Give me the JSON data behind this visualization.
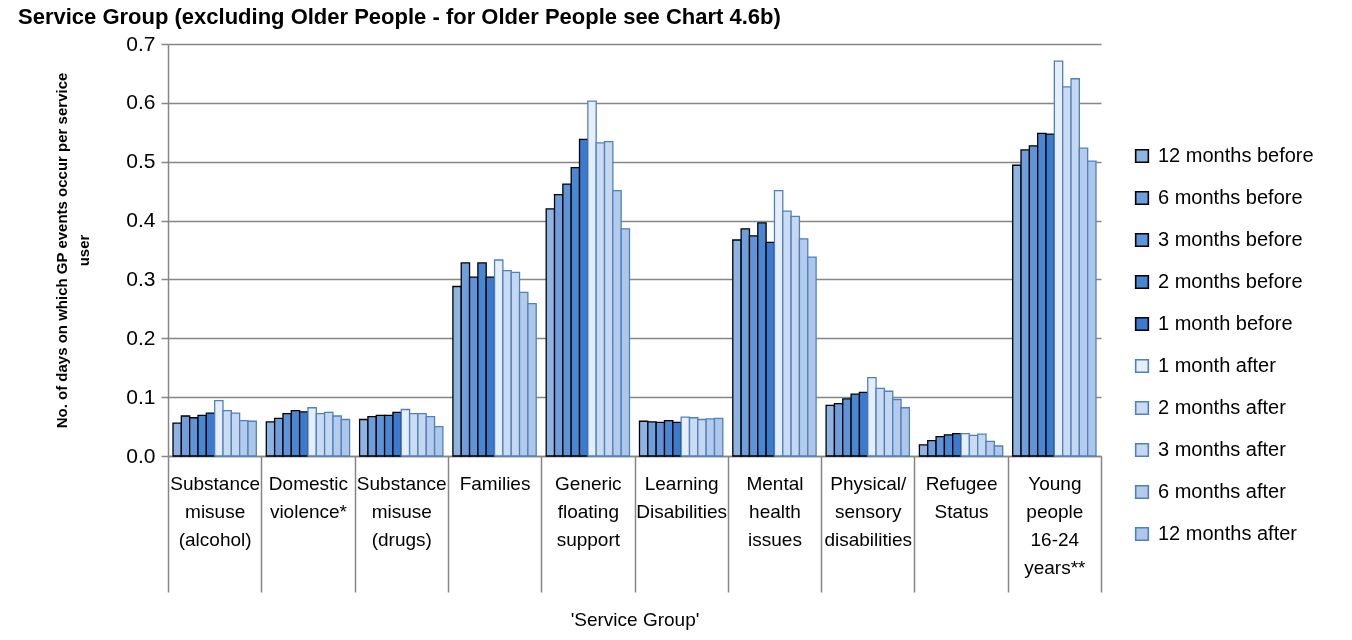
{
  "chart_data": {
    "type": "bar",
    "title": "Service Group (excluding Older People - for Older People see Chart 4.6b)",
    "xlabel": "'Service Group'",
    "ylabel": "No. of days on which GP events occur per service user",
    "categories": [
      "Substance misuse (alcohol)",
      "Domestic violence*",
      "Substance misuse (drugs)",
      "Families",
      "Generic floating support",
      "Learning Disabilities",
      "Mental health issues",
      "Physical/ sensory disabilities",
      "Refugee Status",
      "Young people 16-24 years**"
    ],
    "series": [
      {
        "name": "12 months before",
        "color": "#8eb4e3",
        "values": [
          0.056,
          0.058,
          0.062,
          0.288,
          0.42,
          0.059,
          0.367,
          0.086,
          0.019,
          0.494
        ]
      },
      {
        "name": "6 months before",
        "color": "#6e9fdc",
        "values": [
          0.068,
          0.064,
          0.067,
          0.328,
          0.444,
          0.058,
          0.386,
          0.089,
          0.026,
          0.52
        ]
      },
      {
        "name": "3 months before",
        "color": "#5f95d8",
        "values": [
          0.065,
          0.072,
          0.069,
          0.304,
          0.462,
          0.057,
          0.374,
          0.097,
          0.033,
          0.527
        ]
      },
      {
        "name": "2 months before",
        "color": "#4a87d3",
        "values": [
          0.069,
          0.077,
          0.069,
          0.328,
          0.49,
          0.06,
          0.396,
          0.105,
          0.036,
          0.548
        ]
      },
      {
        "name": "1 month before",
        "color": "#3b7bcf",
        "values": [
          0.073,
          0.075,
          0.074,
          0.304,
          0.538,
          0.057,
          0.363,
          0.108,
          0.038,
          0.547
        ]
      },
      {
        "name": "1 month after",
        "color": "#e6eefa",
        "values": [
          0.094,
          0.082,
          0.079,
          0.333,
          0.603,
          0.066,
          0.451,
          0.133,
          0.038,
          0.671
        ]
      },
      {
        "name": "2 months after",
        "color": "#cbdcf2",
        "values": [
          0.077,
          0.072,
          0.072,
          0.315,
          0.532,
          0.065,
          0.416,
          0.115,
          0.035,
          0.627
        ]
      },
      {
        "name": "3 months after",
        "color": "#c6d8f0",
        "values": [
          0.073,
          0.074,
          0.072,
          0.312,
          0.534,
          0.062,
          0.407,
          0.11,
          0.037,
          0.641
        ]
      },
      {
        "name": "6 months after",
        "color": "#b4cbeb",
        "values": [
          0.06,
          0.068,
          0.067,
          0.278,
          0.451,
          0.063,
          0.369,
          0.096,
          0.025,
          0.523
        ]
      },
      {
        "name": "12 months after",
        "color": "#adc7ea",
        "values": [
          0.059,
          0.062,
          0.05,
          0.259,
          0.386,
          0.064,
          0.338,
          0.082,
          0.017,
          0.501
        ]
      }
    ],
    "ylim": [
      0,
      0.7
    ],
    "yticks": [
      {
        "value": 0,
        "label": "0.0"
      },
      0.1,
      0.2,
      0.3,
      0.4,
      0.5,
      0.6,
      0.7
    ],
    "grid": "y",
    "legend": "right"
  }
}
